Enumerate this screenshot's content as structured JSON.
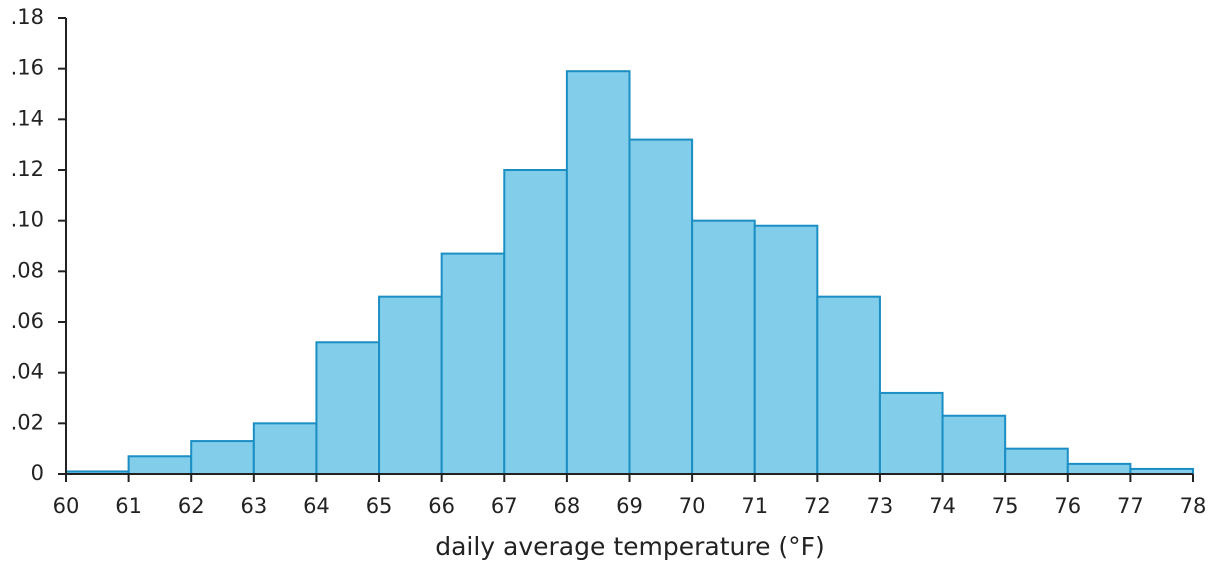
{
  "chart_data": {
    "type": "histogram",
    "x_label": "daily average temperature (°F)",
    "bins": [
      60,
      61,
      62,
      63,
      64,
      65,
      66,
      67,
      68,
      69,
      70,
      71,
      72,
      73,
      74,
      75,
      76,
      77,
      78
    ],
    "values": [
      0.001,
      0.007,
      0.013,
      0.02,
      0.052,
      0.07,
      0.087,
      0.12,
      0.159,
      0.132,
      0.1,
      0.098,
      0.07,
      0.032,
      0.023,
      0.01,
      0.004,
      0.002
    ],
    "color": "#82cdea",
    "edge_color": "#1b8ec3",
    "xlim": [
      60,
      78
    ],
    "xticks": [
      60,
      61,
      62,
      63,
      64,
      65,
      66,
      67,
      68,
      69,
      70,
      71,
      72,
      73,
      74,
      75,
      76,
      77,
      78
    ],
    "ylim": [
      0,
      0.18
    ],
    "yticks": [
      0,
      {
        "value": 0.02,
        "label": ".02"
      },
      {
        "value": 0.04,
        "label": ".04"
      },
      {
        "value": 0.06,
        "label": ".06"
      },
      {
        "value": 0.08,
        "label": ".08"
      },
      {
        "value": 0.1,
        "label": ".10"
      },
      {
        "value": 0.12,
        "label": ".12"
      },
      {
        "value": 0.14,
        "label": ".14"
      },
      {
        "value": 0.16,
        "label": ".16"
      },
      {
        "value": 0.18,
        "label": ".18"
      }
    ]
  }
}
